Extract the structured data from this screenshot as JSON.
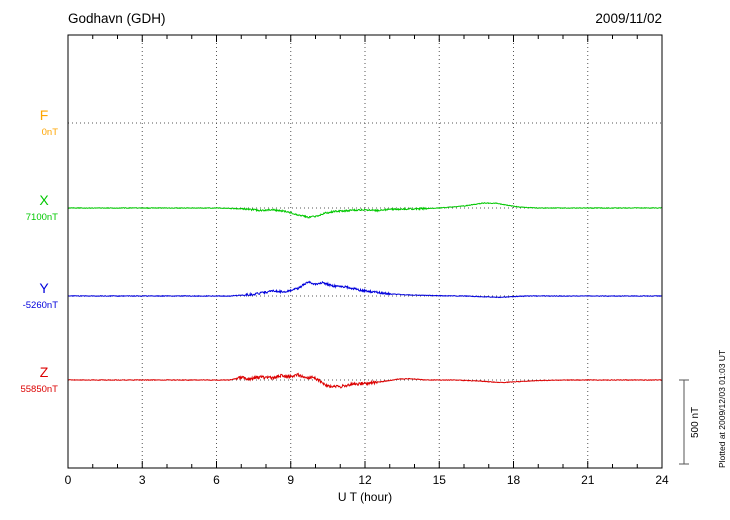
{
  "header": {
    "station": "Godhavn (GDH)",
    "date": "2009/11/02"
  },
  "footer": {
    "plotted_note": "Plotted at 2009/12/03 01:03 UT"
  },
  "chart_data": {
    "type": "line",
    "title": "Godhavn (GDH)",
    "date": "2009/11/02",
    "xlabel": "U T (hour)",
    "x_range": [
      0,
      24
    ],
    "x_ticks": [
      0,
      3,
      6,
      9,
      12,
      15,
      18,
      21,
      24
    ],
    "x_minor_tick_step": 1,
    "grid": "dotted-vertical-at-3h",
    "legend_position": "left-of-axis",
    "scale_bar_label": "500 nT",
    "scale_bar_nT": 500,
    "series": [
      {
        "name": "F",
        "color": "#FFA500",
        "baseline_nT": 0,
        "baseline_label": "0nT",
        "has_trace": false,
        "noise_nT": {
          "quiet": 0,
          "active": 0,
          "active_window": [
            0,
            0
          ]
        },
        "points": []
      },
      {
        "name": "X",
        "color": "#00C800",
        "baseline_nT": 7100,
        "baseline_label": "7100nT",
        "has_trace": true,
        "noise_nT": {
          "quiet": 2,
          "active": 5,
          "active_window": [
            7,
            14.5
          ]
        },
        "points": [
          [
            0,
            0
          ],
          [
            6,
            0
          ],
          [
            7,
            -5
          ],
          [
            7.8,
            -15
          ],
          [
            8.2,
            -10
          ],
          [
            8.8,
            -20
          ],
          [
            9.3,
            -40
          ],
          [
            9.7,
            -55
          ],
          [
            10,
            -50
          ],
          [
            10.4,
            -30
          ],
          [
            10.8,
            -20
          ],
          [
            11.3,
            -15
          ],
          [
            12,
            -10
          ],
          [
            12.5,
            -15
          ],
          [
            13,
            -8
          ],
          [
            14,
            -5
          ],
          [
            15,
            0
          ],
          [
            16,
            12
          ],
          [
            16.8,
            30
          ],
          [
            17.3,
            28
          ],
          [
            17.8,
            15
          ],
          [
            18.3,
            5
          ],
          [
            19,
            0
          ],
          [
            24,
            0
          ]
        ]
      },
      {
        "name": "Y",
        "color": "#0000DC",
        "baseline_nT": -5260,
        "baseline_label": "-5260nT",
        "has_trace": true,
        "noise_nT": {
          "quiet": 2,
          "active": 6,
          "active_window": [
            7,
            13
          ]
        },
        "points": [
          [
            0,
            0
          ],
          [
            6.5,
            0
          ],
          [
            7.5,
            10
          ],
          [
            8.3,
            30
          ],
          [
            8.8,
            25
          ],
          [
            9.3,
            45
          ],
          [
            9.7,
            85
          ],
          [
            10,
            70
          ],
          [
            10.3,
            80
          ],
          [
            10.7,
            60
          ],
          [
            11.2,
            55
          ],
          [
            11.8,
            35
          ],
          [
            12.3,
            25
          ],
          [
            13,
            12
          ],
          [
            14,
            5
          ],
          [
            15,
            2
          ],
          [
            16,
            0
          ],
          [
            17.5,
            -8
          ],
          [
            18.5,
            0
          ],
          [
            24,
            0
          ]
        ]
      },
      {
        "name": "Z",
        "color": "#DC0000",
        "baseline_nT": 55850,
        "baseline_label": "55850nT",
        "has_trace": true,
        "noise_nT": {
          "quiet": 2,
          "active": 9,
          "active_window": [
            6.8,
            12.5
          ]
        },
        "points": [
          [
            0,
            0
          ],
          [
            6.5,
            0
          ],
          [
            7,
            15
          ],
          [
            7.3,
            5
          ],
          [
            7.8,
            18
          ],
          [
            8.3,
            10
          ],
          [
            8.6,
            25
          ],
          [
            9,
            20
          ],
          [
            9.3,
            30
          ],
          [
            9.6,
            10
          ],
          [
            9.9,
            20
          ],
          [
            10.2,
            -10
          ],
          [
            10.5,
            -35
          ],
          [
            11,
            -40
          ],
          [
            11.5,
            -25
          ],
          [
            12,
            -20
          ],
          [
            12.7,
            -10
          ],
          [
            13.3,
            5
          ],
          [
            13.8,
            8
          ],
          [
            14.5,
            0
          ],
          [
            15.5,
            0
          ],
          [
            16.5,
            -5
          ],
          [
            17.5,
            -15
          ],
          [
            18.2,
            -10
          ],
          [
            19,
            -3
          ],
          [
            20,
            0
          ],
          [
            24,
            0
          ]
        ]
      }
    ]
  }
}
